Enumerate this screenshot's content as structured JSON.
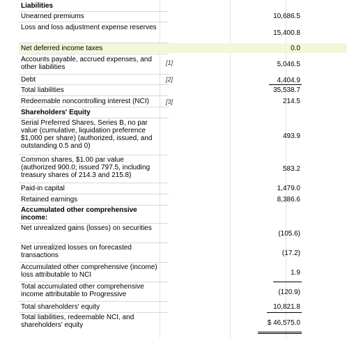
{
  "rows": [
    {
      "label": "Liabilities",
      "note": "",
      "value": ""
    },
    {
      "label": "Unearned premiums",
      "note": "",
      "value": "10,686.5"
    },
    {
      "label": "Loss and loss adjustment expense reserves",
      "note": "",
      "value": "15,400.8"
    },
    {
      "label": "Net deferred income taxes",
      "note": "",
      "value": "0.0"
    },
    {
      "label": "Accounts payable, accrued expenses, and other liabilities",
      "note": "[1]",
      "value": "5,046.5"
    },
    {
      "label": "Debt",
      "note": "[2]",
      "value": "4,404.9"
    },
    {
      "label": "Total liabilities",
      "note": "",
      "value": "35,538.7"
    },
    {
      "label": "Redeemable noncontrolling interest (NCI)",
      "note": "[3]",
      "value": "214.5"
    },
    {
      "label": "Shareholders' Equity",
      "note": "",
      "value": ""
    },
    {
      "label": "Serial Preferred Shares, Series B, no par value (cumulative, liquidation preference $1,000 per share) (authorized, issued, and outstanding 0.5 and 0)",
      "note": "",
      "value": "493.9"
    },
    {
      "label": "Common shares, $1.00 par value (authorized 900.0; issued 797.5, including treasury shares of 214.3 and 215.8)",
      "note": "",
      "value": "583.2"
    },
    {
      "label": "Paid-in capital",
      "note": "",
      "value": "1,479.0"
    },
    {
      "label": "Retained earnings",
      "note": "",
      "value": "8,386.6"
    },
    {
      "label": "Accumulated other comprehensive income:",
      "note": "",
      "value": ""
    },
    {
      "label": "Net unrealized gains (losses) on securities",
      "note": "",
      "value": "(105.6)"
    },
    {
      "label": "Net unrealized losses on forecasted transactions",
      "note": "",
      "value": "(17.2)"
    },
    {
      "label": "Accumulated other comprehensive (income) loss attributable to NCI",
      "note": "",
      "value": "1.9"
    },
    {
      "label": "Total accumulated other comprehensive income attributable to Progressive",
      "note": "",
      "value": "(120.9)"
    },
    {
      "label": "Total shareholders' equity",
      "note": "",
      "value": "10,821.8"
    },
    {
      "label": "Total liabilities, redeemable NCI, and shareholders' equity",
      "note": "",
      "value": "$ 46,575.0"
    }
  ]
}
